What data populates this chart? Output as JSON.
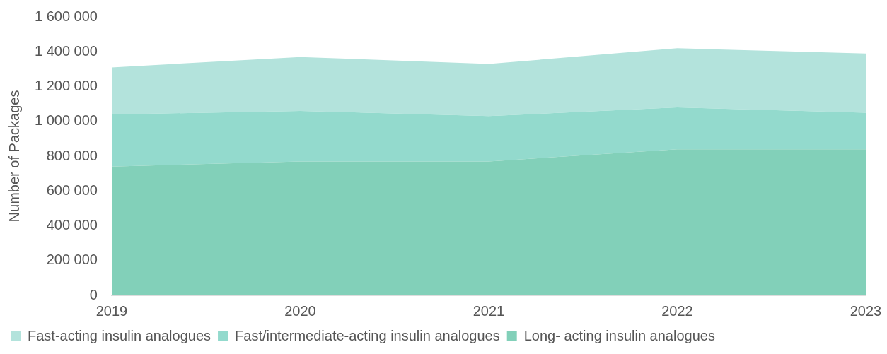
{
  "chart_data": {
    "type": "area",
    "stacked": true,
    "ylabel": "Number of Packages",
    "categories": [
      "2019",
      "2020",
      "2021",
      "2022",
      "2023"
    ],
    "series": [
      {
        "name": "Long- acting insulin analogues",
        "color": "#82d0b9",
        "values": [
          740000,
          770000,
          770000,
          840000,
          840000
        ]
      },
      {
        "name": "Fast/intermediate-acting insulin analogues",
        "color": "#93dacd",
        "values": [
          300000,
          290000,
          260000,
          240000,
          210000
        ]
      },
      {
        "name": "Fast-acting insulin analogues",
        "color": "#b3e3dc",
        "values": [
          270000,
          310000,
          300000,
          340000,
          340000
        ]
      }
    ],
    "ylim": [
      0,
      1600000
    ],
    "yticks": [
      0,
      {
        "value": 200000,
        "label": "200 000"
      },
      {
        "value": 400000,
        "label": "400 000"
      },
      {
        "value": 600000,
        "label": "600 000"
      },
      {
        "value": 800000,
        "label": "800 000"
      },
      {
        "value": 1000000,
        "label": "1 000 000"
      },
      {
        "value": 1200000,
        "label": "1 200 000"
      },
      {
        "value": 1400000,
        "label": "1 400 000"
      },
      {
        "value": 1600000,
        "label": "1 600 000"
      }
    ],
    "grid": false,
    "legend": "bottom"
  }
}
